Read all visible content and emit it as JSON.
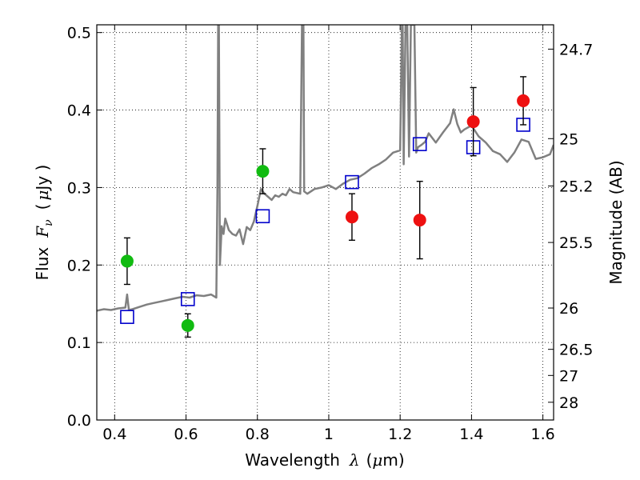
{
  "chart_data": {
    "type": "scatter",
    "title": "",
    "xlabel_prefix": "Wavelength",
    "xlabel_symbol": "λ",
    "xlabel_unit_open": "(",
    "xlabel_unit_mu": "μ",
    "xlabel_unit_rest": "m)",
    "ylabel_prefix": "Flux",
    "ylabel_symbol": "F",
    "ylabel_sub": "ν",
    "ylabel_unit_open": "(",
    "ylabel_unit_mu": "μ",
    "ylabel_unit_rest": "Jy )",
    "y2label": "Magnitude (AB)",
    "xlim": [
      0.35,
      1.63
    ],
    "ylim": [
      0.0,
      0.51
    ],
    "grid": true,
    "colors": {
      "spectrum": "#808080",
      "model_boxes": "#0000cc",
      "green_points": "#11bb11",
      "red_points": "#ee1111",
      "errorbars": "#000000"
    },
    "xticks": [
      {
        "value": 0.4,
        "label": "0.4"
      },
      {
        "value": 0.6,
        "label": "0.6"
      },
      {
        "value": 0.8,
        "label": "0.8"
      },
      {
        "value": 1.0,
        "label": "1"
      },
      {
        "value": 1.2,
        "label": "1.2"
      },
      {
        "value": 1.4,
        "label": "1.4"
      },
      {
        "value": 1.6,
        "label": "1.6"
      }
    ],
    "yticks": [
      {
        "value": 0.0,
        "label": "0.0"
      },
      {
        "value": 0.1,
        "label": "0.1"
      },
      {
        "value": 0.2,
        "label": "0.2"
      },
      {
        "value": 0.3,
        "label": "0.3"
      },
      {
        "value": 0.4,
        "label": "0.4"
      },
      {
        "value": 0.5,
        "label": "0.5"
      }
    ],
    "y2ticks": [
      {
        "flux": 0.4786,
        "label": "24.7"
      },
      {
        "flux": 0.3631,
        "label": "25"
      },
      {
        "flux": 0.302,
        "label": "25.2"
      },
      {
        "flux": 0.2291,
        "label": "25.5"
      },
      {
        "flux": 0.1445,
        "label": "26"
      },
      {
        "flux": 0.0912,
        "label": "26.5"
      },
      {
        "flux": 0.0575,
        "label": "27"
      },
      {
        "flux": 0.0229,
        "label": "28"
      }
    ],
    "spectrum": {
      "name": "",
      "x": [
        0.35,
        0.37,
        0.39,
        0.41,
        0.43,
        0.435,
        0.44,
        0.45,
        0.47,
        0.49,
        0.51,
        0.53,
        0.55,
        0.57,
        0.59,
        0.61,
        0.63,
        0.65,
        0.67,
        0.685,
        0.688,
        0.69,
        0.692,
        0.695,
        0.7,
        0.705,
        0.71,
        0.72,
        0.73,
        0.74,
        0.75,
        0.76,
        0.77,
        0.78,
        0.79,
        0.8,
        0.81,
        0.82,
        0.83,
        0.84,
        0.85,
        0.86,
        0.87,
        0.88,
        0.89,
        0.9,
        0.91,
        0.92,
        0.925,
        0.927,
        0.929,
        0.931,
        0.94,
        0.96,
        0.98,
        1.0,
        1.02,
        1.04,
        1.06,
        1.08,
        1.1,
        1.12,
        1.14,
        1.16,
        1.18,
        1.2,
        1.205,
        1.207,
        1.21,
        1.215,
        1.22,
        1.225,
        1.23,
        1.24,
        1.245,
        1.25,
        1.26,
        1.27,
        1.28,
        1.3,
        1.32,
        1.34,
        1.35,
        1.36,
        1.37,
        1.38,
        1.4,
        1.42,
        1.44,
        1.46,
        1.48,
        1.5,
        1.52,
        1.54,
        1.56,
        1.58,
        1.6,
        1.62,
        1.63
      ],
      "y": [
        0.141,
        0.143,
        0.142,
        0.144,
        0.145,
        0.162,
        0.142,
        0.143,
        0.146,
        0.149,
        0.151,
        0.153,
        0.155,
        0.157,
        0.159,
        0.158,
        0.161,
        0.16,
        0.162,
        0.158,
        0.3,
        0.51,
        0.51,
        0.2,
        0.25,
        0.24,
        0.26,
        0.245,
        0.24,
        0.238,
        0.246,
        0.227,
        0.249,
        0.245,
        0.256,
        0.276,
        0.298,
        0.292,
        0.288,
        0.284,
        0.29,
        0.288,
        0.292,
        0.29,
        0.298,
        0.294,
        0.293,
        0.292,
        0.51,
        0.51,
        0.51,
        0.295,
        0.292,
        0.298,
        0.3,
        0.303,
        0.298,
        0.305,
        0.31,
        0.312,
        0.318,
        0.325,
        0.33,
        0.336,
        0.345,
        0.348,
        0.51,
        0.51,
        0.33,
        0.51,
        0.51,
        0.34,
        0.51,
        0.51,
        0.345,
        0.352,
        0.355,
        0.359,
        0.37,
        0.358,
        0.371,
        0.383,
        0.401,
        0.382,
        0.371,
        0.375,
        0.38,
        0.366,
        0.358,
        0.347,
        0.343,
        0.333,
        0.345,
        0.362,
        0.359,
        0.337,
        0.339,
        0.343,
        0.355
      ]
    },
    "series": [
      {
        "name": "",
        "marker": "square",
        "x": [
          0.435,
          0.605,
          0.815,
          1.065,
          1.255,
          1.405,
          1.545
        ],
        "y": [
          0.133,
          0.156,
          0.263,
          0.307,
          0.356,
          0.352,
          0.381
        ]
      },
      {
        "name": "",
        "marker": "circle",
        "color_key": "green_points",
        "x": [
          0.435,
          0.605,
          0.815
        ],
        "y": [
          0.205,
          0.122,
          0.321
        ],
        "yerr": [
          0.03,
          0.015,
          0.029
        ]
      },
      {
        "name": "",
        "marker": "circle",
        "color_key": "red_points",
        "x": [
          1.065,
          1.255,
          1.405,
          1.545
        ],
        "y": [
          0.262,
          0.258,
          0.385,
          0.412
        ],
        "yerr": [
          0.03,
          0.05,
          0.044,
          0.031
        ]
      }
    ]
  }
}
